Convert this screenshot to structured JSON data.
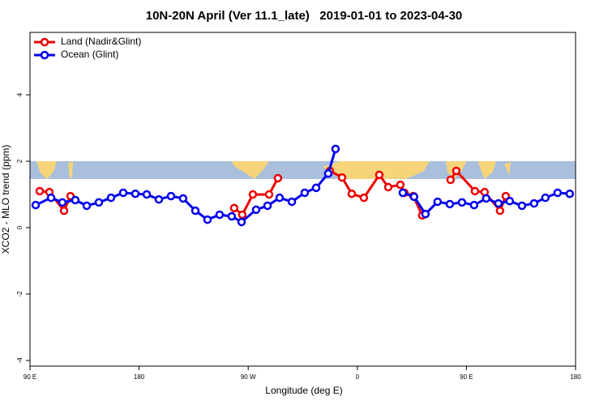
{
  "chart_data": {
    "type": "line",
    "title": "10N-20N April (Ver 11.1_late)   2019-01-01 to 2023-04-30",
    "xlabel": "Longitude (deg E)",
    "ylabel": "XCO2 - MLO trend (ppm)",
    "xlim": [
      90,
      540
    ],
    "xticks": [
      {
        "value": 90,
        "label": "90 E"
      },
      {
        "value": 180,
        "label": "180"
      },
      {
        "value": 270,
        "label": "90 W"
      },
      {
        "value": 360,
        "label": "0"
      },
      {
        "value": 450,
        "label": "90 E"
      },
      {
        "value": 540,
        "label": "180"
      }
    ],
    "ylim": [
      -4.17,
      5.88
    ],
    "yticks": [
      -4,
      -2,
      0,
      2,
      4
    ],
    "legend": "top-left",
    "series": [
      {
        "name": "Land (Nadir&Glint)",
        "color": "#ee0000",
        "x": [
          98.0,
          106.0,
          118.1,
          123.4,
          null,
          258.4,
          265.1,
          273.8,
          287.2,
          294.5,
          null,
          337.3,
          347.4,
          355.4,
          365.4,
          378.1,
          385.5,
          395.5,
          398.8,
          406.2,
          413.5,
          null,
          436.9,
          441.6,
          457.0,
          465.0,
          477.7,
          482.4
        ],
        "values": [
          1.1,
          1.07,
          0.51,
          0.95,
          null,
          0.59,
          0.39,
          1.0,
          1.0,
          1.49,
          null,
          1.71,
          1.51,
          1.02,
          0.9,
          1.59,
          1.22,
          1.29,
          1.05,
          0.95,
          0.37,
          null,
          1.44,
          1.71,
          1.1,
          1.07,
          0.51,
          0.95
        ]
      },
      {
        "name": "Ocean (Glint)",
        "color": "#0000ee",
        "x": [
          94.7,
          107.4,
          116.7,
          127.4,
          136.8,
          146.8,
          156.8,
          166.9,
          176.9,
          186.3,
          196.3,
          206.3,
          216.3,
          226.4,
          236.4,
          246.4,
          256.4,
          264.5,
          276.5,
          285.9,
          295.9,
          306.0,
          316.6,
          326.0,
          336.0,
          342.0,
          null,
          397.5,
          406.8,
          416.2,
          426.2,
          436.3,
          446.3,
          456.3,
          466.3,
          476.4,
          485.7,
          495.8,
          505.8,
          515.1,
          525.2,
          535.2
        ],
        "values": [
          0.68,
          0.9,
          0.76,
          0.83,
          0.66,
          0.76,
          0.9,
          1.05,
          1.02,
          1.0,
          0.85,
          0.95,
          0.88,
          0.51,
          0.24,
          0.39,
          0.34,
          0.17,
          0.54,
          0.66,
          0.9,
          0.78,
          1.05,
          1.2,
          1.63,
          2.37,
          null,
          1.05,
          0.93,
          0.41,
          0.78,
          0.71,
          0.76,
          0.68,
          0.88,
          0.73,
          0.8,
          0.66,
          0.73,
          0.9,
          1.05,
          1.02
        ]
      }
    ]
  }
}
